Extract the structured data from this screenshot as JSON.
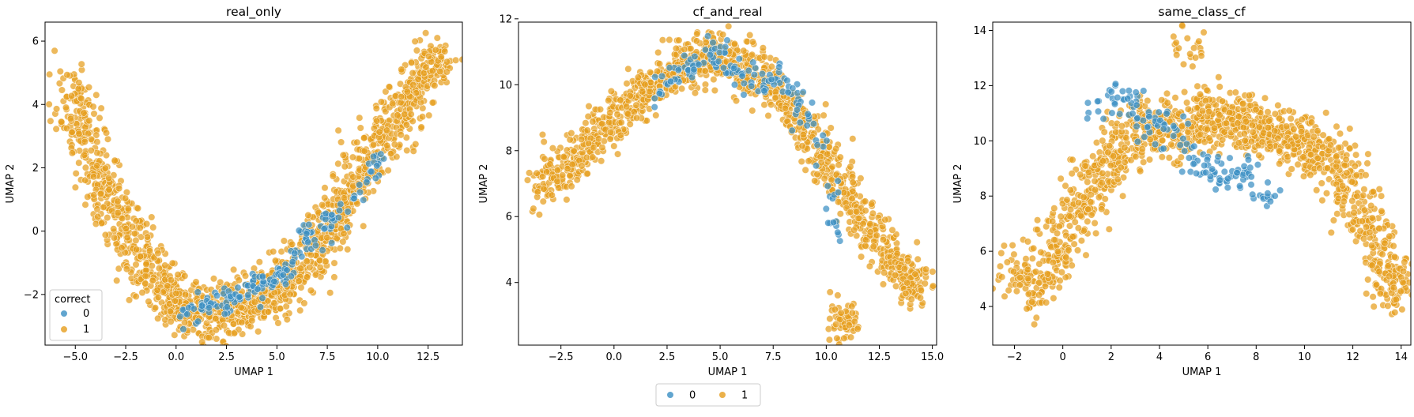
{
  "colors": {
    "0": "#3a8fc3",
    "1": "#e69e1d"
  },
  "figure_legend": {
    "entries": [
      "0",
      "1"
    ],
    "placement": "bottom-center"
  },
  "chart_data": [
    {
      "type": "scatter",
      "title": "real_only",
      "xlabel": "UMAP 1",
      "ylabel": "UMAP 2",
      "xlim": [
        -6.5,
        14.2
      ],
      "ylim": [
        -3.6,
        6.6
      ],
      "xticks": [
        -5.0,
        -2.5,
        0.0,
        2.5,
        5.0,
        7.5,
        10.0,
        12.5
      ],
      "xtick_labels": [
        "−5.0",
        "−2.5",
        "0.0",
        "2.5",
        "5.0",
        "7.5",
        "10.0",
        "12.5"
      ],
      "yticks": [
        -2,
        0,
        2,
        4,
        6
      ],
      "ytick_labels": [
        "−2",
        "0",
        "2",
        "4",
        "6"
      ],
      "legend": {
        "title": "correct",
        "entries": [
          "0",
          "1"
        ],
        "placement": "lower-left"
      },
      "grid": false,
      "series": [
        {
          "name": "1",
          "shape": "U-shaped curve",
          "x": [
            -5.3,
            -5.0,
            -4.6,
            -4.2,
            -3.8,
            -3.4,
            -3.0,
            -2.5,
            -2.0,
            -1.5,
            -1.0,
            -0.5,
            0.0,
            0.5,
            1.0,
            1.5,
            2.0,
            2.5,
            3.0,
            3.5,
            4.0,
            4.5,
            5.0,
            5.5,
            6.0,
            6.5,
            7.0,
            7.5,
            8.0,
            8.5,
            9.0,
            9.5,
            10.0,
            10.5,
            11.0,
            11.5,
            12.0,
            12.5,
            13.0
          ],
          "y": [
            3.2,
            4.8,
            3.4,
            2.6,
            1.8,
            1.2,
            0.6,
            0.1,
            -0.5,
            -1.0,
            -1.4,
            -1.8,
            -2.1,
            -2.3,
            -2.5,
            -2.6,
            -2.6,
            -2.5,
            -2.4,
            -2.3,
            -2.2,
            -2.0,
            -1.8,
            -1.5,
            -1.2,
            -0.8,
            -0.4,
            0.0,
            0.5,
            1.0,
            1.6,
            2.1,
            2.7,
            3.2,
            3.7,
            4.1,
            4.5,
            4.9,
            5.4
          ],
          "spread": 0.7
        },
        {
          "name": "0",
          "shape": "bottom of U",
          "x": [
            0.5,
            1.0,
            1.5,
            2.0,
            2.5,
            3.0,
            3.5,
            4.0,
            4.5,
            5.0,
            5.5,
            6.0,
            6.5,
            7.0,
            7.5,
            8.0,
            9.5,
            10.0
          ],
          "y": [
            -2.5,
            -2.7,
            -2.4,
            -2.2,
            -2.3,
            -2.0,
            -1.9,
            -1.6,
            -1.7,
            -1.4,
            -1.3,
            -0.9,
            0.1,
            -0.6,
            0.3,
            0.4,
            1.5,
            2.3
          ],
          "spread": 0.3
        }
      ]
    },
    {
      "type": "scatter",
      "title": "cf_and_real",
      "xlabel": "UMAP 1",
      "ylabel": "UMAP 2",
      "xlim": [
        -4.5,
        15.2
      ],
      "ylim": [
        2.1,
        11.9
      ],
      "xticks": [
        -2.5,
        0.0,
        2.5,
        5.0,
        7.5,
        10.0,
        12.5,
        15.0
      ],
      "xtick_labels": [
        "−2.5",
        "0.0",
        "2.5",
        "5.0",
        "7.5",
        "10.0",
        "12.5",
        "15.0"
      ],
      "yticks": [
        4,
        6,
        8,
        10,
        12
      ],
      "ytick_labels": [
        "4",
        "6",
        "8",
        "10",
        "12"
      ],
      "grid": false,
      "series": [
        {
          "name": "1",
          "shape": "arch",
          "x": [
            -3.6,
            -3.0,
            -2.4,
            -1.8,
            -1.2,
            -0.6,
            0.0,
            0.6,
            1.2,
            1.8,
            2.4,
            3.0,
            3.6,
            4.2,
            4.8,
            5.4,
            6.0,
            6.6,
            7.2,
            7.8,
            8.4,
            9.0,
            9.6,
            10.2,
            10.8,
            11.4,
            12.0,
            12.6,
            13.2,
            13.8,
            14.2,
            10.6,
            10.9
          ],
          "y": [
            6.7,
            7.1,
            7.5,
            7.9,
            8.3,
            8.7,
            9.0,
            9.3,
            9.6,
            9.9,
            10.2,
            10.5,
            10.7,
            10.8,
            10.8,
            10.7,
            10.6,
            10.4,
            10.1,
            9.7,
            9.2,
            8.6,
            8.0,
            7.4,
            6.8,
            6.2,
            5.6,
            5.1,
            4.6,
            4.3,
            4.0,
            2.6,
            2.9
          ],
          "spread": 0.55
        },
        {
          "name": "0",
          "shape": "top of arch",
          "x": [
            2.0,
            2.6,
            3.2,
            3.8,
            4.4,
            5.0,
            5.6,
            6.2,
            6.8,
            7.4,
            8.0,
            8.6,
            9.2,
            9.8,
            10.5
          ],
          "y": [
            9.6,
            10.1,
            10.4,
            10.6,
            10.8,
            10.9,
            10.5,
            10.3,
            10.2,
            10.0,
            10.3,
            9.6,
            9.1,
            7.8,
            5.6
          ],
          "spread": 0.35
        }
      ]
    },
    {
      "type": "scatter",
      "title": "same_class_cf",
      "xlabel": "UMAP 1",
      "ylabel": "UMAP 2",
      "xlim": [
        -2.9,
        14.4
      ],
      "ylim": [
        2.6,
        14.3
      ],
      "xticks": [
        -2,
        0,
        2,
        4,
        6,
        8,
        10,
        12,
        14
      ],
      "xtick_labels": [
        "−2",
        "0",
        "2",
        "4",
        "6",
        "8",
        "10",
        "12",
        "14"
      ],
      "yticks": [
        4,
        6,
        8,
        10,
        12,
        14
      ],
      "ytick_labels": [
        "4",
        "6",
        "8",
        "10",
        "12",
        "14"
      ],
      "grid": false,
      "series": [
        {
          "name": "1",
          "shape": "broad arch",
          "x": [
            -2.0,
            -1.5,
            -1.0,
            -0.5,
            0.0,
            0.5,
            1.0,
            1.5,
            2.0,
            2.5,
            3.0,
            3.5,
            4.0,
            4.5,
            5.0,
            5.5,
            6.0,
            6.5,
            7.0,
            7.5,
            8.0,
            8.5,
            9.0,
            9.5,
            10.0,
            10.5,
            11.0,
            11.5,
            12.0,
            12.5,
            13.0,
            13.5,
            13.8,
            5.2
          ],
          "y": [
            5.4,
            5.0,
            4.6,
            5.8,
            6.8,
            7.4,
            8.0,
            8.8,
            9.4,
            9.8,
            10.2,
            10.5,
            10.6,
            10.4,
            10.2,
            10.5,
            10.8,
            10.9,
            11.0,
            10.6,
            10.3,
            10.5,
            10.2,
            10.0,
            9.8,
            9.6,
            9.3,
            8.8,
            8.0,
            7.2,
            6.2,
            5.2,
            4.7,
            13.4
          ],
          "spread": 0.75
        },
        {
          "name": "0",
          "shape": "upper-left cluster",
          "x": [
            1.0,
            2.0,
            2.5,
            3.0,
            3.5,
            4.0,
            4.5,
            5.0,
            5.5,
            6.0,
            6.5,
            7.0,
            7.5,
            8.0,
            8.5
          ],
          "y": [
            11.0,
            11.5,
            11.8,
            11.2,
            10.6,
            10.2,
            10.8,
            10.0,
            9.2,
            9.0,
            8.6,
            8.8,
            9.2,
            8.4,
            7.8
          ],
          "spread": 0.45
        }
      ]
    }
  ]
}
